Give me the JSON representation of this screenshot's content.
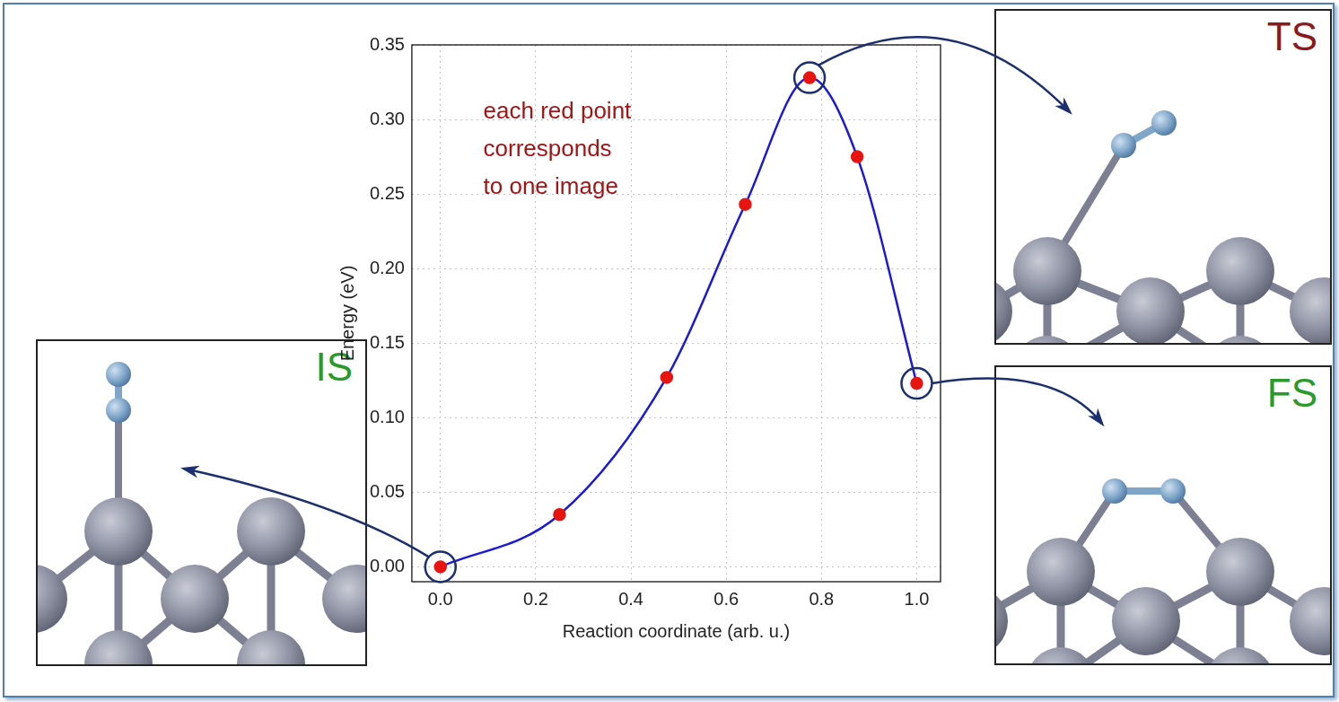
{
  "chart_data": {
    "type": "line",
    "xlabel": "Reaction coordinate (arb. u.)",
    "ylabel": "Energy (eV)",
    "x": [
      0,
      0.25,
      0.475,
      0.64,
      0.775,
      0.875,
      1.0
    ],
    "values": [
      0,
      0.035,
      0.127,
      0.243,
      0.328,
      0.275,
      0.123
    ],
    "color": "#1a1ad6",
    "colors": [
      "#e8140f",
      "#e8140f",
      "#e8140f",
      "#e8140f",
      "#e8140f",
      "#e8140f",
      "#e8140f"
    ],
    "marker": "circle",
    "line_style": "solid",
    "xlim": [
      -0.06,
      1.05
    ],
    "ylim": [
      -0.01,
      0.35
    ],
    "xticks": [
      {
        "value": 0,
        "label": "0.0"
      },
      {
        "value": 0.2,
        "label": "0.2"
      },
      {
        "value": 0.4,
        "label": "0.4"
      },
      {
        "value": 0.6,
        "label": "0.6"
      },
      {
        "value": 0.8,
        "label": "0.8"
      },
      {
        "value": 1.0,
        "label": "1.0"
      }
    ],
    "yticks": [
      {
        "value": 0,
        "label": "0.00"
      },
      {
        "value": 0.05,
        "label": "0.05"
      },
      {
        "value": 0.1,
        "label": "0.10"
      },
      {
        "value": 0.15,
        "label": "0.15"
      },
      {
        "value": 0.2,
        "label": "0.20"
      },
      {
        "value": 0.25,
        "label": "0.25"
      },
      {
        "value": 0.3,
        "label": "0.30"
      },
      {
        "value": 0.35,
        "label": "0.35"
      }
    ],
    "grid": true,
    "annotation": [
      "each red point",
      "corresponds",
      "to one image"
    ],
    "states": [
      {
        "label": "IS",
        "x": 0
      },
      {
        "label": "TS",
        "x": 0.775
      },
      {
        "label": "FS",
        "x": 1.0
      }
    ]
  }
}
